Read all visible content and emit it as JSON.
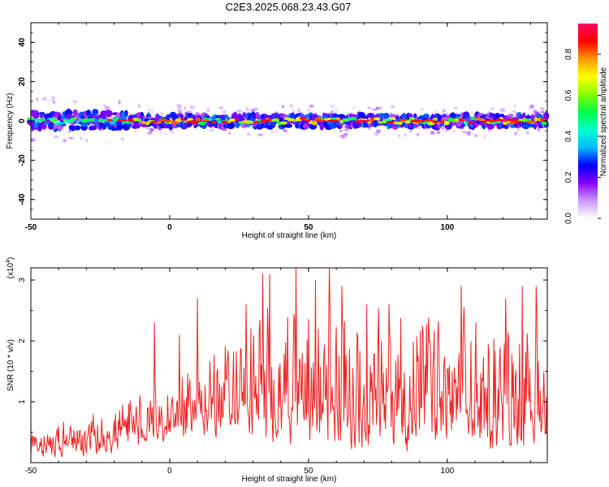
{
  "title": "C2E3.2025.068.23.43.G07",
  "chart_data": [
    {
      "type": "heatmap",
      "xlabel": "Height of straight line (km)",
      "ylabel": "Frequency (Hz)",
      "xlim": [
        -50,
        136
      ],
      "ylim": [
        -50,
        50
      ],
      "xticks": [
        -50,
        0,
        50,
        100
      ],
      "yticks": [
        -40,
        -20,
        0,
        20,
        40
      ],
      "colorbar": {
        "label": "Normalized spectral amplitude",
        "range": [
          0,
          0.95
        ],
        "ticks": [
          0.0,
          0.2,
          0.4,
          0.6,
          0.8
        ],
        "colors": [
          "#ffffff",
          "#cc99ff",
          "#8800ff",
          "#0000ff",
          "#00bbff",
          "#00ffcc",
          "#00ff44",
          "#88ff00",
          "#ffff00",
          "#ff9900",
          "#ff0000",
          "#ff0066"
        ]
      },
      "band": {
        "center_hz": 0,
        "half_width_hz_left": 5,
        "half_width_hz_right": 3
      }
    },
    {
      "type": "line",
      "xlabel": "Height of straight line (km)",
      "ylabel": "SNR (10 * v/v)",
      "y_multiplier": "(x10^4)",
      "xlim": [
        -50,
        136
      ],
      "ylim": [
        0,
        3.2
      ],
      "xticks": [
        -50,
        0,
        50,
        100
      ],
      "yticks": [
        1,
        2,
        3
      ],
      "series": [
        {
          "color": "#ee2222",
          "x_step": 0.25,
          "x_start": -50,
          "envelope": [
            [
              -50,
              0.05,
              0.7
            ],
            [
              -35,
              0.05,
              0.8
            ],
            [
              -20,
              0.1,
              1.0
            ],
            [
              -15,
              0.15,
              1.2
            ],
            [
              -5,
              0.2,
              1.6
            ],
            [
              0,
              0.25,
              1.5
            ],
            [
              10,
              0.4,
              2.0
            ],
            [
              25,
              0.3,
              2.4
            ],
            [
              35,
              0.2,
              2.9
            ],
            [
              60,
              0.1,
              2.9
            ],
            [
              90,
              0.1,
              2.8
            ],
            [
              136,
              0.1,
              2.5
            ]
          ],
          "spikes": [
            [
              -5.5,
              2.3
            ],
            [
              3.5,
              2.1
            ],
            [
              10,
              2.7
            ],
            [
              27.5,
              2.6
            ],
            [
              33.5,
              3.1
            ],
            [
              36,
              3.1
            ],
            [
              45.5,
              3.2
            ],
            [
              52.5,
              3.0
            ],
            [
              57.5,
              3.2
            ],
            [
              62,
              2.9
            ],
            [
              71,
              2.6
            ],
            [
              79,
              2.6
            ],
            [
              105,
              2.9
            ],
            [
              121,
              2.7
            ],
            [
              127,
              2.9
            ],
            [
              132,
              2.9
            ]
          ]
        }
      ]
    }
  ]
}
